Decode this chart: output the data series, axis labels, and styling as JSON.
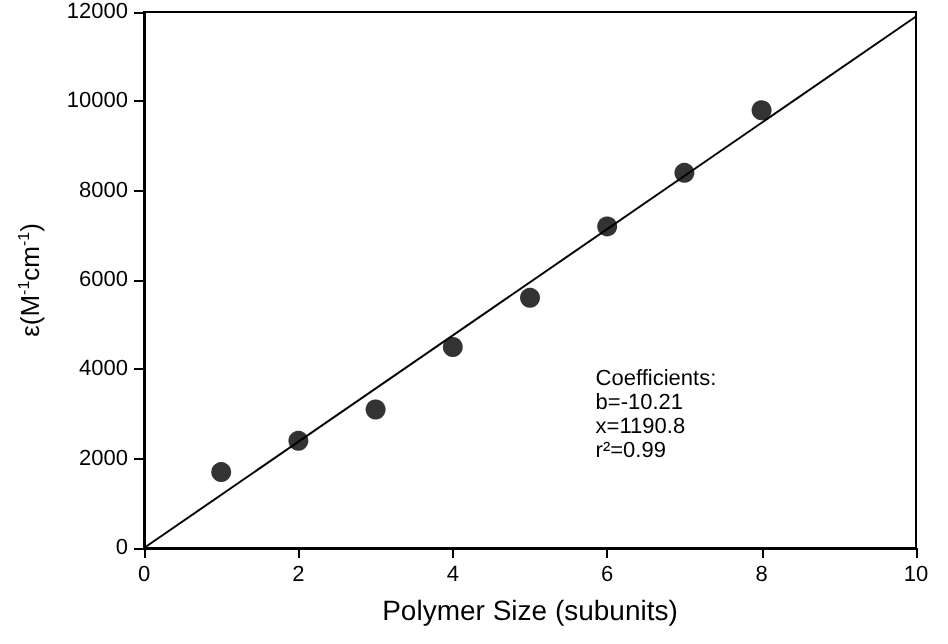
{
  "chart_data": {
    "type": "scatter",
    "xlabel": "Polymer Size (subunits)",
    "ylabel": "ε(M$^{-1}$cm$^{-1}$)",
    "x": [
      1,
      2,
      3,
      4,
      5,
      6,
      7,
      8
    ],
    "series": [
      {
        "color": "#000000",
        "marker": "circle",
        "values": [
          1700,
          2400,
          3100,
          4500,
          5600,
          7200,
          8400,
          9800
        ]
      },
      {
        "type": "line",
        "color": "#000000",
        "marker": "none",
        "x": [
          0,
          10
        ],
        "values": [
          0,
          11900
        ]
      }
    ],
    "xlim": [
      0,
      10
    ],
    "xticks": [
      0,
      2,
      4,
      6,
      8,
      10
    ],
    "ylim": [
      0,
      12000
    ],
    "yticks": [
      0,
      2000,
      4000,
      6000,
      8000,
      10000,
      12000
    ],
    "grid": false,
    "annotations": [
      "Coefficients:",
      "b=-10.21",
      "x=1190.8",
      "r²=0.99"
    ]
  }
}
